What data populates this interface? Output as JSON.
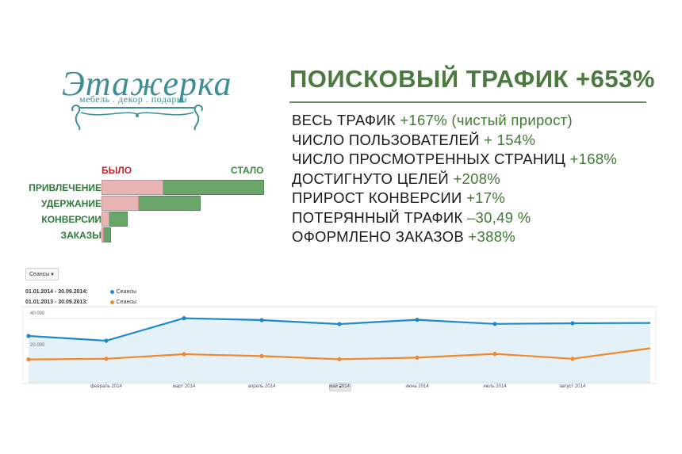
{
  "logo": {
    "name": "Этажерка",
    "tagline": "мебель . декор . подарки"
  },
  "headline": {
    "label": "ПОИСКОВЫЙ ТРАФИК",
    "value": "+653%"
  },
  "stats": [
    {
      "label": "ВЕСЬ ТРАФИК ",
      "value": "+167% (чистый прирост)"
    },
    {
      "label": "ЧИСЛО ПОЛЬЗОВАТЕЛЕЙ ",
      "value": "+ 154%"
    },
    {
      "label": "ЧИСЛО ПРОСМОТРЕННЫХ СТРАНИЦ ",
      "value": "+168%"
    },
    {
      "label": "ДОСТИГНУТО ЦЕЛЕЙ ",
      "value": "+208%"
    },
    {
      "label": "ПРИРОСТ КОНВЕРСИИ ",
      "value": "+17%"
    },
    {
      "label": "ПОТЕРЯННЫЙ ТРАФИК ",
      "value": "–30,49 %"
    },
    {
      "label": "ОФОРМЛЕНО ЗАКАЗОВ ",
      "value": "+388%"
    }
  ],
  "colors": {
    "green_text": "#4b7a3e",
    "was": "#e8b4b4",
    "now": "#6aa56a",
    "series_2014": "#1f8ac9",
    "series_2013": "#ee8a2c",
    "logo": "#3e8e95"
  },
  "chart_data": [
    {
      "type": "bar",
      "orientation": "horizontal",
      "legend": [
        "БЫЛО",
        "СТАЛО"
      ],
      "categories": [
        "ПРИВЛЕЧЕНИЕ",
        "УДЕРЖАНИЕ",
        "КОНВЕРСИИ",
        "ЗАКАЗЫ"
      ],
      "series": [
        {
          "name": "БЫЛО",
          "values": [
            0.38,
            0.23,
            0.05,
            0.015
          ]
        },
        {
          "name": "СТАЛО",
          "values": [
            1.0,
            0.61,
            0.16,
            0.06
          ]
        }
      ],
      "xlim": [
        0,
        1
      ]
    },
    {
      "type": "area",
      "dropdown": "Сеансы",
      "legend": [
        {
          "range": "01.01.2014 - 30.09.2014:",
          "name": "Сеансы",
          "color": "#1f8ac9"
        },
        {
          "range": "01.01.2013 - 30.09.2013:",
          "name": "Сеансы",
          "color": "#ee8a2c"
        }
      ],
      "yticks": [
        "40 000",
        "20 000"
      ],
      "ylim": [
        0,
        45000
      ],
      "x_labels": [
        "февраль 2014",
        "март 2014",
        "апрель 2014",
        "май 2014",
        "июнь 2014",
        "июль 2014",
        "август 2014"
      ],
      "x": [
        0,
        1,
        2,
        3,
        4,
        5,
        6,
        7,
        8
      ],
      "series": [
        {
          "name": "Сеансы",
          "values": [
            29000,
            26000,
            40200,
            39000,
            36500,
            39200,
            36600,
            37000,
            37200
          ]
        },
        {
          "name": "Сеансы",
          "values": [
            14200,
            14600,
            17500,
            16300,
            14300,
            15300,
            17700,
            14600,
            21200
          ]
        }
      ]
    }
  ]
}
